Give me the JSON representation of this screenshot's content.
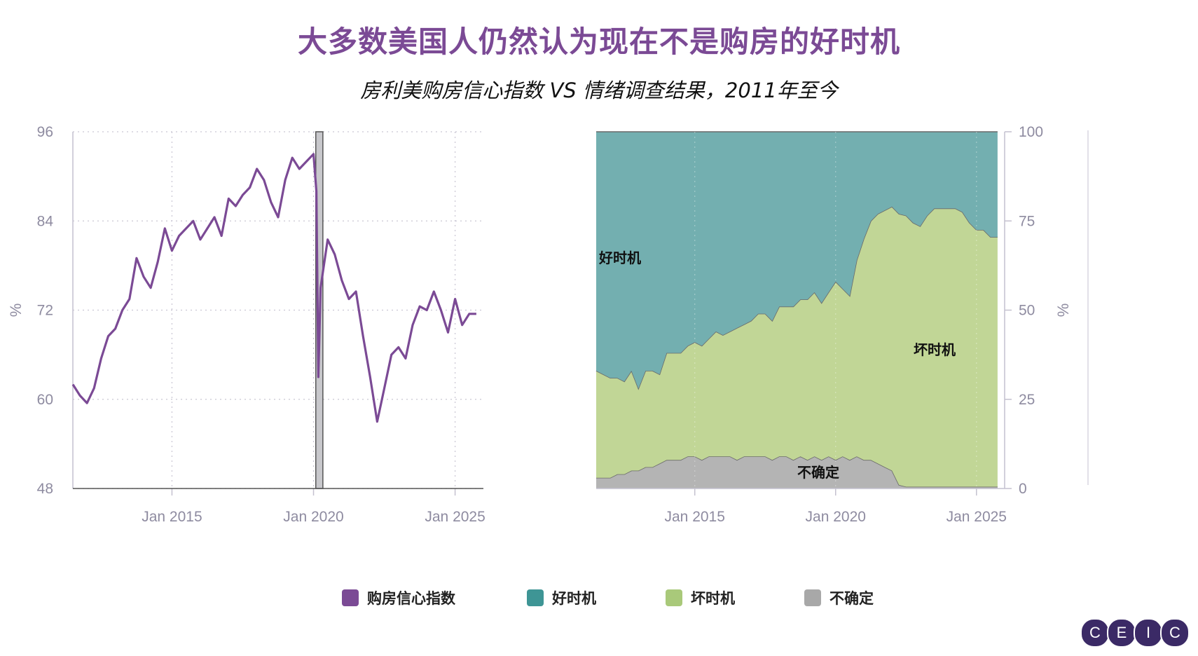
{
  "title": "大多数美国人仍然认为现在不是购房的好时机",
  "subtitle": "房利美购房信心指数 VS 情绪调查结果，2011年至今",
  "legend": [
    {
      "label": "购房信心指数",
      "color": "#7b4a95"
    },
    {
      "label": "好时机",
      "color": "#3e9595"
    },
    {
      "label": "坏时机",
      "color": "#a9c97a"
    },
    {
      "label": "不确定",
      "color": "#a8a8a8"
    }
  ],
  "logo_letters": [
    "C",
    "E",
    "I",
    "C"
  ],
  "chart_data": [
    {
      "type": "line",
      "series": [
        {
          "name": "购房信心指数",
          "color": "#7b4a95",
          "x": [
            2011.5,
            2011.75,
            2012.0,
            2012.25,
            2012.5,
            2012.75,
            2013.0,
            2013.25,
            2013.5,
            2013.75,
            2014.0,
            2014.25,
            2014.5,
            2014.75,
            2015.0,
            2015.25,
            2015.5,
            2015.75,
            2016.0,
            2016.25,
            2016.5,
            2016.75,
            2017.0,
            2017.25,
            2017.5,
            2017.75,
            2018.0,
            2018.25,
            2018.5,
            2018.75,
            2019.0,
            2019.25,
            2019.5,
            2019.75,
            2020.0,
            2020.1,
            2020.17,
            2020.25,
            2020.5,
            2020.75,
            2021.0,
            2021.25,
            2021.5,
            2021.75,
            2022.0,
            2022.25,
            2022.5,
            2022.75,
            2023.0,
            2023.25,
            2023.5,
            2023.75,
            2024.0,
            2024.25,
            2024.5,
            2024.75,
            2025.0,
            2025.25,
            2025.5,
            2025.75
          ],
          "values": [
            62,
            60.5,
            59.5,
            61.5,
            65.5,
            68.5,
            69.5,
            72,
            73.5,
            79,
            76.5,
            75,
            78.5,
            83,
            80,
            82,
            83,
            84,
            81.5,
            83,
            84.5,
            82,
            87,
            86,
            87.5,
            88.5,
            91,
            89.5,
            86.5,
            84.5,
            89.5,
            92.5,
            91,
            92,
            93,
            88,
            63,
            75,
            81.5,
            79.5,
            76,
            73.5,
            74.5,
            68.5,
            63,
            57,
            61.5,
            66,
            67,
            65.5,
            70,
            72.5,
            72,
            74.5,
            72,
            69,
            73.5,
            70,
            71.5,
            71.5
          ]
        }
      ],
      "ylim": [
        48,
        96
      ],
      "yticks": [
        48,
        60,
        72,
        84,
        96
      ],
      "xlim": [
        2011.5,
        2026.0
      ],
      "xticks": [
        2015,
        2020,
        2025
      ],
      "xticklabels": [
        "Jan 2015",
        "Jan 2020",
        "Jan 2025"
      ],
      "ylabel": "%",
      "shaded_period": [
        2020.08,
        2020.33
      ],
      "grid": true
    },
    {
      "type": "area",
      "stacked": true,
      "x": [
        2011.5,
        2011.75,
        2012.0,
        2012.25,
        2012.5,
        2012.75,
        2013.0,
        2013.25,
        2013.5,
        2013.75,
        2014.0,
        2014.25,
        2014.5,
        2014.75,
        2015.0,
        2015.25,
        2015.5,
        2015.75,
        2016.0,
        2016.25,
        2016.5,
        2016.75,
        2017.0,
        2017.25,
        2017.5,
        2017.75,
        2018.0,
        2018.25,
        2018.5,
        2018.75,
        2019.0,
        2019.25,
        2019.5,
        2019.75,
        2020.0,
        2020.25,
        2020.5,
        2020.75,
        2021.0,
        2021.25,
        2021.5,
        2021.75,
        2022.0,
        2022.25,
        2022.5,
        2022.75,
        2023.0,
        2023.25,
        2023.5,
        2023.75,
        2024.0,
        2024.25,
        2024.5,
        2024.75,
        2025.0,
        2025.25,
        2025.5,
        2025.75
      ],
      "series": [
        {
          "name": "不确定",
          "color": "#b4b4b4",
          "values": [
            3,
            3,
            3,
            4,
            4,
            5,
            5,
            6,
            6,
            7,
            8,
            8,
            8,
            9,
            9,
            8,
            9,
            9,
            9,
            9,
            8,
            9,
            9,
            9,
            9,
            8,
            9,
            9,
            8,
            9,
            8,
            9,
            8,
            9,
            8,
            9,
            8,
            9,
            8,
            8,
            7,
            6,
            5,
            1,
            0.5,
            0.5,
            0.5,
            0.5,
            0.5,
            0.5,
            0.5,
            0.5,
            0.5,
            0.5,
            0.5,
            0.5,
            0.5,
            0.5
          ]
        },
        {
          "name": "坏时机",
          "color": "#c1d696",
          "values": [
            30,
            29,
            28,
            27,
            26,
            28,
            23,
            27,
            27,
            25,
            30,
            30,
            30,
            31,
            32,
            32,
            33,
            35,
            34,
            35,
            37,
            37,
            38,
            40,
            40,
            39,
            42,
            42,
            43,
            44,
            45,
            46,
            44,
            46,
            50,
            47,
            46,
            55,
            62,
            67,
            70,
            72,
            74,
            76,
            76,
            74,
            73,
            76,
            78,
            78,
            78,
            78,
            77,
            74,
            72,
            72,
            70,
            70
          ]
        },
        {
          "name": "好时机",
          "color": "#73afb0",
          "values": [
            67,
            68,
            69,
            69,
            70,
            67,
            72,
            67,
            67,
            68,
            62,
            62,
            62,
            60,
            59,
            60,
            58,
            56,
            57,
            56,
            55,
            54,
            53,
            51,
            51,
            53,
            49,
            49,
            49,
            47,
            47,
            45,
            48,
            45,
            42,
            44,
            46,
            36,
            30,
            25,
            23,
            22,
            21,
            23,
            23.5,
            25.5,
            26.5,
            23.5,
            21.5,
            21.5,
            21.5,
            21.5,
            22.5,
            25.5,
            27.5,
            27.5,
            29.5,
            29.5
          ]
        }
      ],
      "ylim": [
        0,
        100
      ],
      "yticks": [
        0,
        25,
        50,
        75,
        100
      ],
      "xlim": [
        2011.5,
        2026.0
      ],
      "xticks": [
        2015,
        2020,
        2025
      ],
      "xticklabels": [
        "Jan 2015",
        "Jan 2020",
        "Jan 2025"
      ],
      "ylabel": "%",
      "annotations": [
        {
          "text": "好时机",
          "x": 2011.6,
          "y": 65
        },
        {
          "text": "坏时机",
          "x": 2014.1,
          "y": 0
        },
        {
          "text": "不确定",
          "x": 2019.3,
          "y": 4
        }
      ]
    }
  ]
}
